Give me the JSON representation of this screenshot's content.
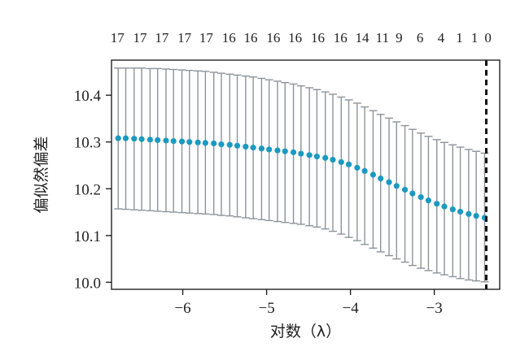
{
  "chart_data": {
    "type": "scatter",
    "xlabel": "对数（λ）",
    "ylabel": "偏似然偏差",
    "xlim": [
      -6.85,
      -2.22
    ],
    "ylim": [
      9.985,
      10.475
    ],
    "x_ticks": [
      -6,
      -5,
      -4,
      -3
    ],
    "x_tick_labels": [
      "−6",
      "−5",
      "−4",
      "−3"
    ],
    "y_ticks": [
      10.0,
      10.1,
      10.2,
      10.3,
      10.4
    ],
    "y_tick_labels": [
      "10.0",
      "10.1",
      "10.2",
      "10.3",
      "10.4"
    ],
    "top_axis_labels": [
      {
        "x": -6.78,
        "label": "17"
      },
      {
        "x": -6.51,
        "label": "17"
      },
      {
        "x": -6.25,
        "label": "17"
      },
      {
        "x": -5.98,
        "label": "17"
      },
      {
        "x": -5.72,
        "label": "17"
      },
      {
        "x": -5.45,
        "label": "16"
      },
      {
        "x": -5.19,
        "label": "16"
      },
      {
        "x": -4.92,
        "label": "16"
      },
      {
        "x": -4.66,
        "label": "16"
      },
      {
        "x": -4.39,
        "label": "16"
      },
      {
        "x": -4.12,
        "label": "16"
      },
      {
        "x": -3.86,
        "label": "14"
      },
      {
        "x": -3.62,
        "label": "11"
      },
      {
        "x": -3.42,
        "label": "9"
      },
      {
        "x": -3.17,
        "label": "6"
      },
      {
        "x": -2.92,
        "label": "4"
      },
      {
        "x": -2.7,
        "label": "1"
      },
      {
        "x": -2.52,
        "label": "1"
      },
      {
        "x": -2.36,
        "label": "0"
      }
    ],
    "vline_x": -2.38,
    "grid": false,
    "series": [
      {
        "color": "#1a9ac0",
        "error_bar_color": "#8c9499",
        "x": [
          -6.77,
          -6.68,
          -6.58,
          -6.49,
          -6.39,
          -6.3,
          -6.2,
          -6.11,
          -6.01,
          -5.92,
          -5.82,
          -5.73,
          -5.63,
          -5.54,
          -5.44,
          -5.35,
          -5.25,
          -5.16,
          -5.06,
          -4.97,
          -4.87,
          -4.78,
          -4.68,
          -4.59,
          -4.49,
          -4.4,
          -4.3,
          -4.21,
          -4.11,
          -4.02,
          -3.92,
          -3.83,
          -3.73,
          -3.64,
          -3.54,
          -3.45,
          -3.35,
          -3.26,
          -3.16,
          -3.07,
          -2.97,
          -2.88,
          -2.78,
          -2.69,
          -2.59,
          -2.5,
          -2.4
        ],
        "y": [
          10.308,
          10.308,
          10.307,
          10.306,
          10.305,
          10.304,
          10.303,
          10.302,
          10.301,
          10.3,
          10.299,
          10.298,
          10.297,
          10.295,
          10.294,
          10.292,
          10.29,
          10.288,
          10.286,
          10.284,
          10.282,
          10.28,
          10.278,
          10.275,
          10.272,
          10.269,
          10.266,
          10.262,
          10.257,
          10.252,
          10.245,
          10.238,
          10.23,
          10.222,
          10.214,
          10.206,
          10.198,
          10.19,
          10.182,
          10.175,
          10.168,
          10.162,
          10.156,
          10.151,
          10.146,
          10.142,
          10.138
        ],
        "lower": [
          10.157,
          10.156,
          10.155,
          10.154,
          10.153,
          10.152,
          10.151,
          10.15,
          10.149,
          10.148,
          10.147,
          10.146,
          10.145,
          10.143,
          10.142,
          10.14,
          10.138,
          10.136,
          10.134,
          10.132,
          10.13,
          10.128,
          10.126,
          10.124,
          10.121,
          10.118,
          10.114,
          10.109,
          10.103,
          10.096,
          10.089,
          10.081,
          10.073,
          10.065,
          10.057,
          10.05,
          10.043,
          10.036,
          10.03,
          10.025,
          10.02,
          10.016,
          10.012,
          10.008,
          10.005,
          10.003,
          10.001
        ],
        "upper": [
          10.458,
          10.458,
          10.458,
          10.458,
          10.457,
          10.457,
          10.456,
          10.455,
          10.454,
          10.453,
          10.452,
          10.451,
          10.449,
          10.447,
          10.445,
          10.443,
          10.441,
          10.439,
          10.436,
          10.433,
          10.43,
          10.427,
          10.424,
          10.42,
          10.416,
          10.412,
          10.407,
          10.402,
          10.396,
          10.39,
          10.383,
          10.375,
          10.367,
          10.359,
          10.351,
          10.343,
          10.335,
          10.327,
          10.319,
          10.312,
          10.305,
          10.299,
          10.294,
          10.289,
          10.284,
          10.28,
          10.276
        ]
      }
    ]
  }
}
